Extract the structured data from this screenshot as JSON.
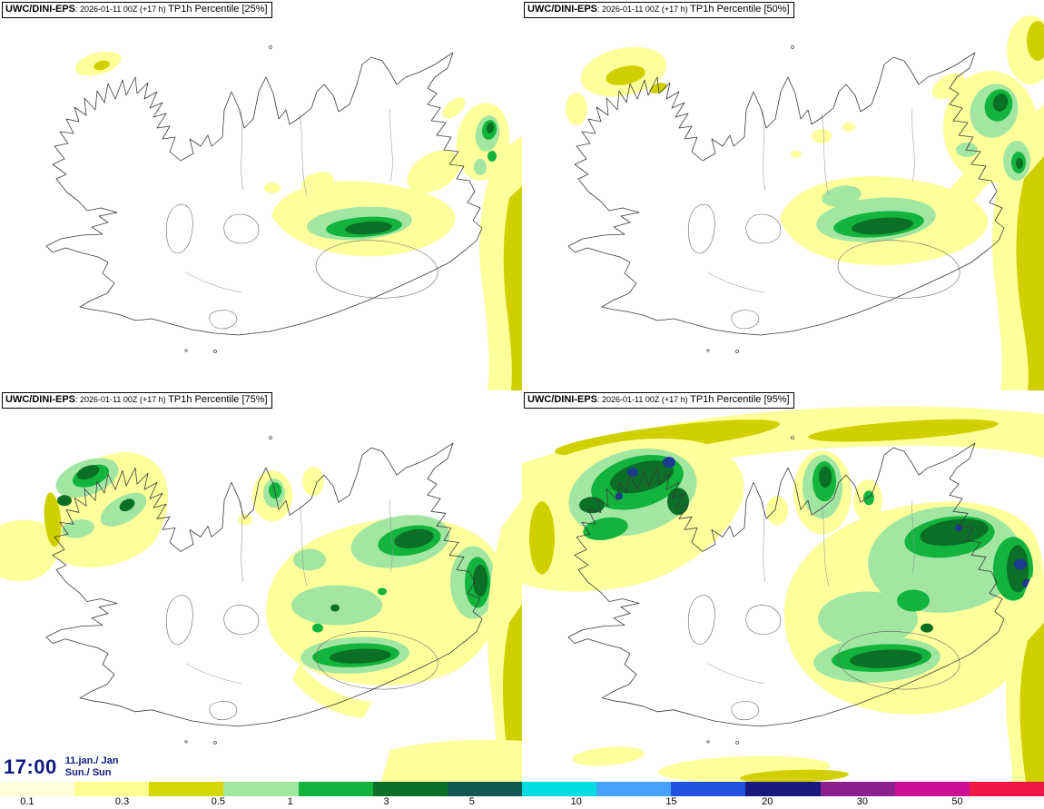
{
  "panels": [
    {
      "model": "UWC/DINI-EPS",
      "run": ": 2026-01-11 00Z (+17 h) ",
      "product": "TP1h Percentile",
      "percentile": " [25%]"
    },
    {
      "model": "UWC/DINI-EPS",
      "run": ": 2026-01-11 00Z (+17 h) ",
      "product": "TP1h Percentile",
      "percentile": " [50%]"
    },
    {
      "model": "UWC/DINI-EPS",
      "run": ": 2026-01-11 00Z (+17 h) ",
      "product": "TP1h Percentile",
      "percentile": " [75%]"
    },
    {
      "model": "UWC/DINI-EPS",
      "run": ": 2026-01-11 00Z (+17 h) ",
      "product": "TP1h Percentile",
      "percentile": " [95%]"
    }
  ],
  "time_box": {
    "time": "17:00",
    "date_line1": "11.jan./ Jan",
    "date_line2": "Sun./ Sun"
  },
  "palette": {
    "Y": "#ffff9b",
    "O": "#d0d000",
    "LG": "#a2e6a2",
    "G": "#12b43e",
    "DG": "#0b7025",
    "N": "#1a3b8f"
  },
  "colorbar": {
    "colors": [
      "#ffffd8",
      "#ffff8f",
      "#d6d600",
      "#a2e6a2",
      "#12b43e",
      "#0b7025",
      "#0f5a50",
      "#00dce1",
      "#46a2ff",
      "#2052e0",
      "#191980",
      "#8c2090",
      "#cc0f96",
      "#ee1745"
    ],
    "labels": [
      {
        "t": "0.1",
        "p": 2.6
      },
      {
        "t": "0.3",
        "p": 11.7
      },
      {
        "t": "0.5",
        "p": 20.9
      },
      {
        "t": "1",
        "p": 27.8
      },
      {
        "t": "3",
        "p": 37.0
      },
      {
        "t": "5",
        "p": 45.2
      },
      {
        "t": "10",
        "p": 55.2
      },
      {
        "t": "15",
        "p": 64.3
      },
      {
        "t": "20",
        "p": 73.5
      },
      {
        "t": "30",
        "p": 82.6
      },
      {
        "t": "50",
        "p": 91.7
      }
    ]
  }
}
